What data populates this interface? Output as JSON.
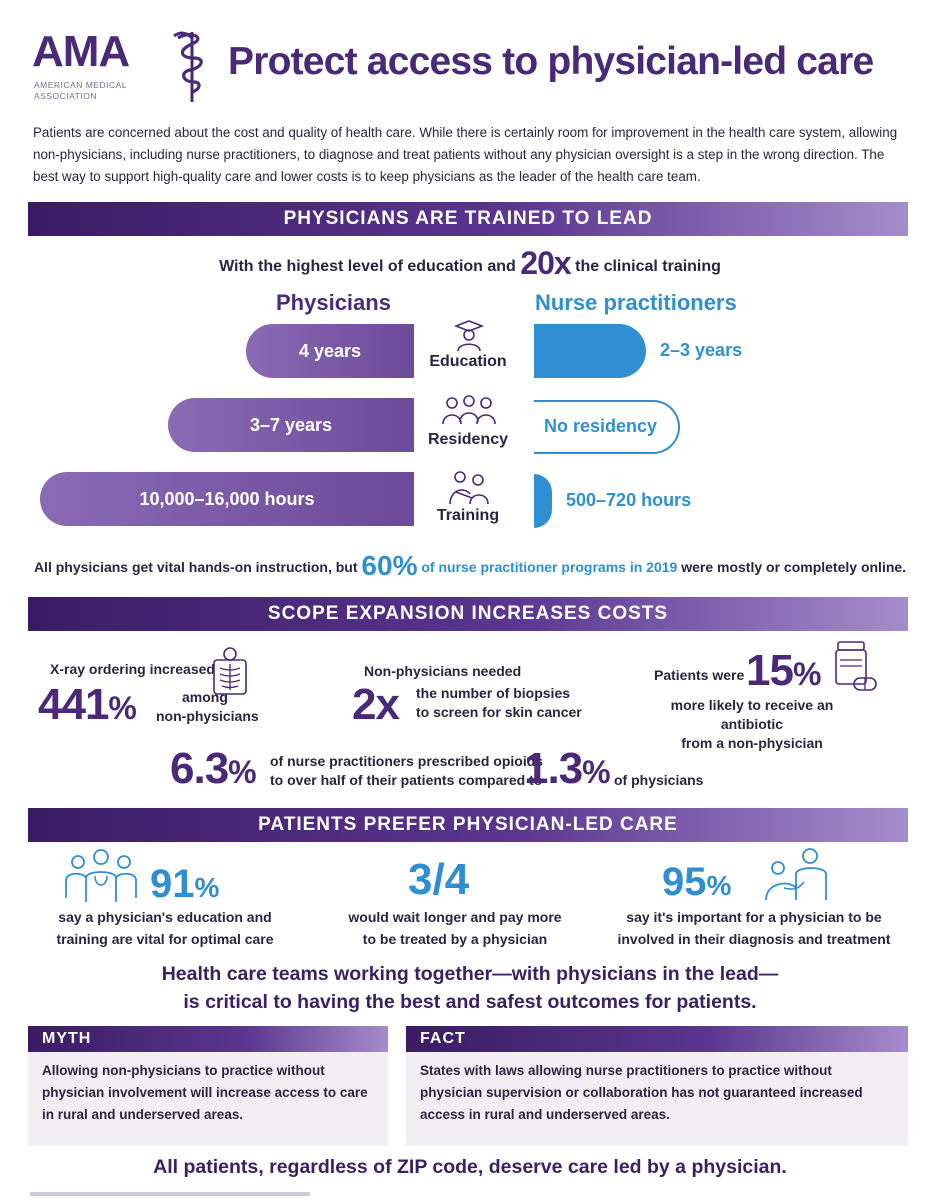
{
  "header": {
    "logo_text": "AMA",
    "logo_sub_line1": "AMERICAN MEDICAL",
    "logo_sub_line2": "ASSOCIATION",
    "title": "Protect access to physician-led care"
  },
  "intro": "Patients are concerned about the cost and quality of health care. While there is certainly room for improvement in the health care system, allowing non-physicians, including nurse practitioners, to diagnose and treat patients without any physician oversight is a step in the wrong direction. The best way to support high-quality care and lower costs is to keep physicians as the leader of the health care team.",
  "section1": {
    "banner": "PHYSICIANS ARE TRAINED TO LEAD",
    "subtitle_pre": "With the highest level of education and ",
    "subtitle_big": "20x",
    "subtitle_post": " the clinical training",
    "col_physicians": "Physicians",
    "col_np": "Nurse practitioners",
    "rows": [
      {
        "label": "Education",
        "physicians": "4 years",
        "np": "2–3 years",
        "icon": "graduate-icon"
      },
      {
        "label": "Residency",
        "physicians": "3–7 years",
        "np": "No residency",
        "icon": "group-icon"
      },
      {
        "label": "Training",
        "physicians": "10,000–16,000 hours",
        "np": "500–720 hours",
        "icon": "caregiver-icon"
      }
    ],
    "footer_pre": "All physicians get vital hands-on instruction, but ",
    "footer_big": "60%",
    "footer_mid": " of nurse practitioner programs in 2019 ",
    "footer_post": "were mostly or completely online."
  },
  "section2": {
    "banner": "SCOPE EXPANSION INCREASES COSTS",
    "xray_label": "X-ray ordering increased",
    "xray_value": "441",
    "xray_pct": "%",
    "xray_suffix_line1": "among",
    "xray_suffix_line2": "non-physicians",
    "biopsy_label": "Non-physicians needed",
    "biopsy_value": "2x",
    "biopsy_suffix_line1": "the number of biopsies",
    "biopsy_suffix_line2": "to screen for skin cancer",
    "antibiotic_pre": "Patients were",
    "antibiotic_value": "15",
    "antibiotic_pct": "%",
    "antibiotic_line1": "more likely to receive an antibiotic",
    "antibiotic_line2": "from a non-physician",
    "opioid_np_value": "6.3",
    "opioid_pct": "%",
    "opioid_line1": "of nurse practitioners prescribed opioids",
    "opioid_line2": "to over half of their patients compared to",
    "opioid_phys_value": "1.3",
    "opioid_tail": "of physicians"
  },
  "section3": {
    "banner": "PATIENTS PREFER PHYSICIAN-LED CARE",
    "stat1_value": "91",
    "stat1_pct": "%",
    "stat1_line1": "say a physician's education and",
    "stat1_line2": "training are vital for optimal care",
    "stat2_value": "3/4",
    "stat2_line1": "would wait longer and pay more",
    "stat2_line2": "to be treated by a physician",
    "stat3_value": "95",
    "stat3_pct": "%",
    "stat3_line1": "say it's important for a physician to be",
    "stat3_line2": "involved in their diagnosis and treatment",
    "teamwork_line1": "Health care teams working together—with physicians in the lead—",
    "teamwork_line2": "is critical to having the best and safest outcomes for patients."
  },
  "myth": {
    "head": "MYTH",
    "body": "Allowing non-physicians to practice without physician involvement will increase access to care in rural and underserved areas."
  },
  "fact": {
    "head": "FACT",
    "body": "States with laws allowing nurse practitioners to practice without physician supervision or collaboration has not guaranteed increased access in rural and underserved areas."
  },
  "closing": "All patients, regardless of ZIP code, deserve care led by a physician.",
  "colors": {
    "purple": "#4a2a78",
    "blue": "#2f8fd0",
    "banner_dark": "#3a1c63",
    "bar_light": "#8a6bb4"
  }
}
